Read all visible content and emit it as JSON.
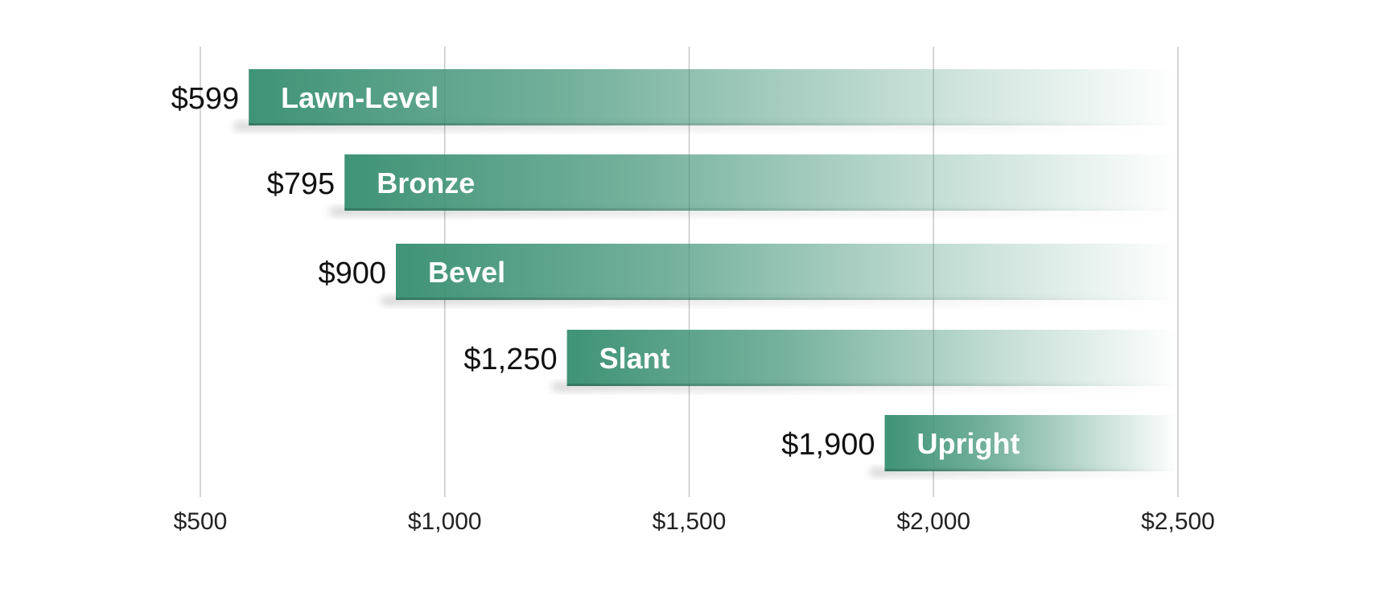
{
  "chart_data": {
    "type": "bar",
    "orientation": "horizontal",
    "categories": [
      "Lawn-Level",
      "Bronze",
      "Bevel",
      "Slant",
      "Upright"
    ],
    "values": [
      599,
      795,
      900,
      1250,
      1900
    ],
    "value_labels": [
      "$599",
      "$795",
      "$900",
      "$1,250",
      "$1,900"
    ],
    "xlim": [
      500,
      2500
    ],
    "x_ticks": [
      500,
      1000,
      1500,
      2000,
      2500
    ],
    "x_tick_labels": [
      "$500",
      "$1,000",
      "$1,500",
      "$2,000",
      "$2,500"
    ],
    "title": "",
    "xlabel": "",
    "ylabel": "",
    "grid": "vertical",
    "legend": "none",
    "bar_color": "#3f9376",
    "grid_color": "#c8c8c8"
  }
}
